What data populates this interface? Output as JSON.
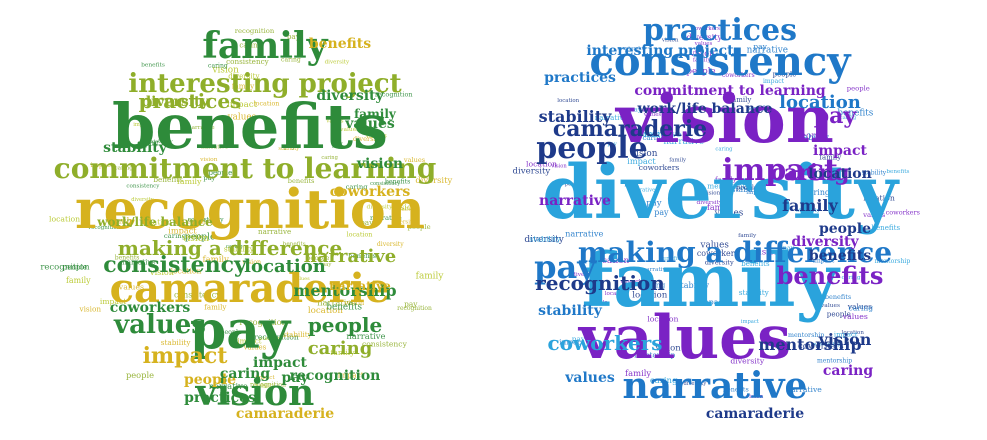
{
  "clouds": [
    {
      "id": "left",
      "palette": {
        "green": "#2e8b3a",
        "gold": "#d6b21e",
        "olive": "#8fae2a",
        "yellowgreen": "#b5c625"
      },
      "words": [
        {
          "text": "benefits",
          "c": "green"
        },
        {
          "text": "recognition",
          "c": "gold"
        },
        {
          "text": "camaraderie",
          "c": "gold"
        },
        {
          "text": "pay",
          "c": "green"
        },
        {
          "text": "commitment to learning",
          "c": "olive"
        },
        {
          "text": "family",
          "c": "green"
        },
        {
          "text": "interesting project",
          "c": "olive"
        },
        {
          "text": "vision",
          "c": "green"
        },
        {
          "text": "values",
          "c": "green"
        },
        {
          "text": "making a difference",
          "c": "olive"
        },
        {
          "text": "consistency",
          "c": "green"
        },
        {
          "text": "practices",
          "c": "olive"
        },
        {
          "text": "impact",
          "c": "gold"
        },
        {
          "text": "people",
          "c": "green"
        },
        {
          "text": "narrative",
          "c": "olive"
        },
        {
          "text": "caring",
          "c": "olive"
        },
        {
          "text": "location",
          "c": "green"
        },
        {
          "text": "mentorship",
          "c": "green"
        },
        {
          "text": "stability",
          "c": "green"
        },
        {
          "text": "coworkers",
          "c": "gold"
        },
        {
          "text": "diversity",
          "c": "olive"
        },
        {
          "text": "work/life balance",
          "c": "olive"
        },
        {
          "text": "values",
          "c": "green"
        },
        {
          "text": "vision",
          "c": "green"
        },
        {
          "text": "benefits",
          "c": "gold"
        },
        {
          "text": "diversity",
          "c": "green"
        },
        {
          "text": "recognition",
          "c": "green"
        },
        {
          "text": "family",
          "c": "green"
        },
        {
          "text": "coworkers",
          "c": "green"
        },
        {
          "text": "narrative",
          "c": "gold"
        },
        {
          "text": "camaraderie",
          "c": "gold"
        },
        {
          "text": "practices",
          "c": "green"
        },
        {
          "text": "impact",
          "c": "green"
        },
        {
          "text": "people",
          "c": "gold"
        },
        {
          "text": "pay",
          "c": "green"
        },
        {
          "text": "caring",
          "c": "green"
        }
      ]
    },
    {
      "id": "right",
      "palette": {
        "purple": "#7a22c4",
        "blue": "#1f78c8",
        "navy": "#1e3a8a",
        "sky": "#2aa3dc"
      },
      "words": [
        {
          "text": "vision",
          "c": "purple"
        },
        {
          "text": "diversity",
          "c": "sky"
        },
        {
          "text": "family",
          "c": "sky"
        },
        {
          "text": "values",
          "c": "purple"
        },
        {
          "text": "consistency",
          "c": "blue"
        },
        {
          "text": "practices",
          "c": "blue"
        },
        {
          "text": "narrative",
          "c": "blue"
        },
        {
          "text": "people",
          "c": "navy"
        },
        {
          "text": "impact",
          "c": "purple"
        },
        {
          "text": "pay",
          "c": "blue"
        },
        {
          "text": "making a difference",
          "c": "blue"
        },
        {
          "text": "recognition",
          "c": "navy"
        },
        {
          "text": "benefits",
          "c": "purple"
        },
        {
          "text": "camaraderie",
          "c": "navy"
        },
        {
          "text": "caring",
          "c": "purple"
        },
        {
          "text": "coworkers",
          "c": "sky"
        },
        {
          "text": "mentorship",
          "c": "navy"
        },
        {
          "text": "stability",
          "c": "navy"
        },
        {
          "text": "location",
          "c": "blue"
        },
        {
          "text": "work/life balance",
          "c": "navy"
        },
        {
          "text": "commitment to learning",
          "c": "purple"
        },
        {
          "text": "interesting project",
          "c": "blue"
        },
        {
          "text": "family",
          "c": "navy"
        },
        {
          "text": "diversity",
          "c": "purple"
        },
        {
          "text": "people",
          "c": "navy"
        },
        {
          "text": "vision",
          "c": "navy"
        },
        {
          "text": "values",
          "c": "blue"
        },
        {
          "text": "benefits",
          "c": "navy"
        },
        {
          "text": "pay",
          "c": "purple"
        },
        {
          "text": "caring",
          "c": "purple"
        },
        {
          "text": "location",
          "c": "navy"
        },
        {
          "text": "narrative",
          "c": "purple"
        },
        {
          "text": "impact",
          "c": "purple"
        },
        {
          "text": "practices",
          "c": "blue"
        },
        {
          "text": "camaraderie",
          "c": "navy"
        },
        {
          "text": "stability",
          "c": "blue"
        }
      ]
    }
  ]
}
